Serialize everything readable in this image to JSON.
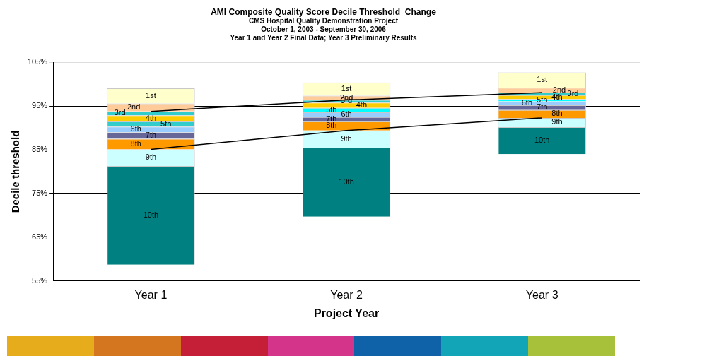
{
  "chart_data": {
    "type": "bar",
    "title": "AMI Composite Quality Score Decile Threshold  Change",
    "subtitle": "CMS Hospital Quality Demonstration Project\nOctober 1, 2003 - September 30, 2006\nYear 1 and Year 2 Final Data; Year 3 Preliminary Results",
    "xlabel": "Project Year",
    "ylabel": "Decile threshold",
    "categories": [
      "Year 1",
      "Year 2",
      "Year 3"
    ],
    "ylim": [
      55,
      105
    ],
    "yticks": [
      {
        "value": 55,
        "label": "55%"
      },
      {
        "value": 65,
        "label": "65%"
      },
      {
        "value": 75,
        "label": "75%"
      },
      {
        "value": 85,
        "label": "85%"
      },
      {
        "value": 95,
        "label": "95%"
      },
      {
        "value": 105,
        "label": "105%"
      }
    ],
    "grid": "y",
    "legend": false,
    "series": [
      {
        "name": "10th",
        "color": "#008080",
        "base": [
          58.7,
          69.7,
          84.0
        ],
        "values": [
          22.6,
          15.8,
          6.2
        ]
      },
      {
        "name": "9th",
        "color": "#ccffff",
        "base": [
          81.3,
          85.5,
          90.2
        ],
        "values": [
          3.8,
          3.9,
          2.1
        ]
      },
      {
        "name": "8th",
        "color": "#ff9900",
        "base": [
          85.1,
          89.4,
          92.3
        ],
        "values": [
          2.4,
          2.1,
          1.8
        ]
      },
      {
        "name": "7th",
        "color": "#666699",
        "base": [
          87.5,
          91.5,
          94.1
        ],
        "values": [
          1.5,
          1.0,
          1.1
        ]
      },
      {
        "name": "6th",
        "color": "#99ccff",
        "base": [
          89.0,
          92.5,
          95.2
        ],
        "values": [
          1.3,
          1.1,
          0.9
        ]
      },
      {
        "name": "5th",
        "colors": [
          "#33cccc",
          "#00ffff",
          "#00ffff"
        ],
        "base": [
          90.3,
          93.6,
          96.1
        ],
        "values": [
          1.2,
          1.0,
          0.5
        ]
      },
      {
        "name": "4th",
        "color": "#ffcc00",
        "base": [
          91.5,
          94.6,
          96.6
        ],
        "values": [
          1.4,
          1.2,
          0.9
        ]
      },
      {
        "name": "3rd",
        "color": "#33cccc",
        "base": [
          92.9,
          95.8,
          97.5
        ],
        "values": [
          0.9,
          0.6,
          0.6
        ]
      },
      {
        "name": "2nd",
        "color": "#ffcc99",
        "base": [
          93.8,
          96.4,
          98.1
        ],
        "values": [
          1.8,
          1.0,
          1.1
        ]
      },
      {
        "name": "1st",
        "color": "#ffffcc",
        "base": [
          95.6,
          97.4,
          99.2
        ],
        "values": [
          3.5,
          3.0,
          3.5
        ]
      },
      {
        "type": "line",
        "color": "#000000",
        "marker": "none",
        "values": [
          93.8,
          96.4,
          98.1
        ]
      },
      {
        "type": "line",
        "color": "#000000",
        "marker": "none",
        "values": [
          85.1,
          89.4,
          92.3
        ]
      }
    ]
  }
}
